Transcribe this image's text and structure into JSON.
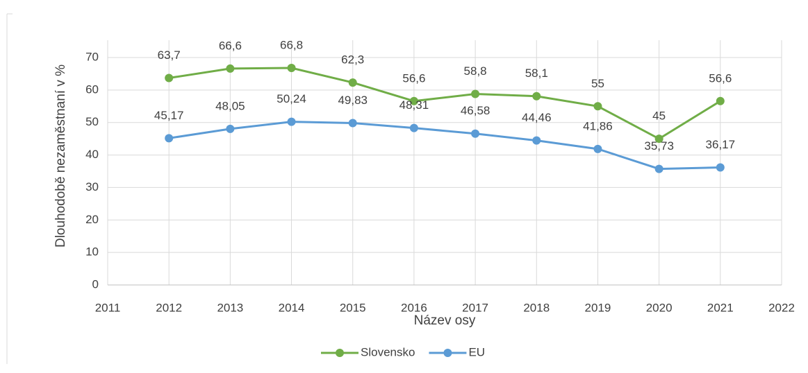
{
  "chart_data": {
    "type": "line",
    "x_label": "Název osy",
    "y_label": "Dlouhodobě nezaměstnaní v %",
    "x": [
      2012,
      2013,
      2014,
      2015,
      2016,
      2017,
      2018,
      2019,
      2020,
      2021
    ],
    "series": [
      {
        "name": "Slovensko",
        "color": "#70ad47",
        "values": [
          63.7,
          66.6,
          66.8,
          62.3,
          56.6,
          58.8,
          58.1,
          55,
          45,
          56.6
        ],
        "value_labels": [
          "63,7",
          "66,6",
          "66,8",
          "62,3",
          "56,6",
          "58,8",
          "58,1",
          "55",
          "45",
          "56,6"
        ]
      },
      {
        "name": "EU",
        "color": "#5b9bd5",
        "values": [
          45.17,
          48.05,
          50.24,
          49.83,
          48.31,
          46.58,
          44.46,
          41.86,
          35.73,
          36.17
        ],
        "value_labels": [
          "45,17",
          "48,05",
          "50,24",
          "49,83",
          "48,31",
          "46,58",
          "44,46",
          "41,86",
          "35,73",
          "36,17"
        ]
      }
    ],
    "xlim": [
      2011,
      2022
    ],
    "xticks": [
      2011,
      2012,
      2013,
      2014,
      2015,
      2016,
      2017,
      2018,
      2019,
      2020,
      2021,
      2022
    ],
    "ylim": [
      0,
      70
    ],
    "yticks": [
      0,
      10,
      20,
      30,
      40,
      50,
      60,
      70
    ],
    "grid": true,
    "legend": "bottom"
  }
}
